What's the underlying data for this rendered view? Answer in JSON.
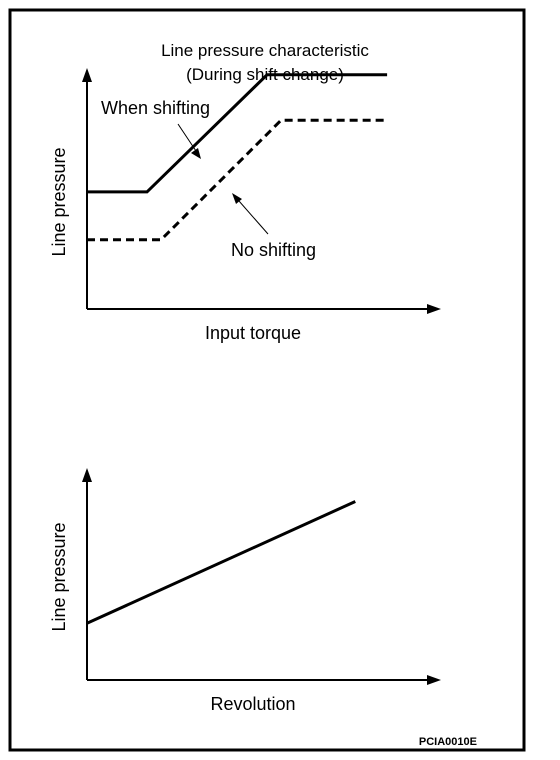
{
  "figure_code": "PCIA0010E",
  "colors": {
    "ink": "#000000",
    "background": "#ffffff"
  },
  "chart_data": [
    {
      "type": "line",
      "title": "Line pressure characteristic",
      "subtitle": "(During shift change)",
      "xlabel": "Input torque",
      "ylabel": "Line pressure",
      "xlim": [
        0,
        100
      ],
      "ylim": [
        0,
        100
      ],
      "ticks": "none",
      "grid": false,
      "series": [
        {
          "name": "When shifting",
          "style": "solid",
          "x": [
            0,
            17,
            51,
            85
          ],
          "y": [
            49,
            49,
            98,
            98
          ]
        },
        {
          "name": "No shifting",
          "style": "dashed",
          "x": [
            0,
            21,
            55,
            85
          ],
          "y": [
            29,
            29,
            79,
            79
          ]
        }
      ]
    },
    {
      "type": "line",
      "title": "",
      "xlabel": "Revolution",
      "ylabel": "Line pressure",
      "xlim": [
        0,
        100
      ],
      "ylim": [
        0,
        100
      ],
      "ticks": "none",
      "grid": false,
      "series": [
        {
          "name": "",
          "style": "solid",
          "x": [
            0,
            76
          ],
          "y": [
            27,
            85
          ]
        }
      ]
    }
  ]
}
